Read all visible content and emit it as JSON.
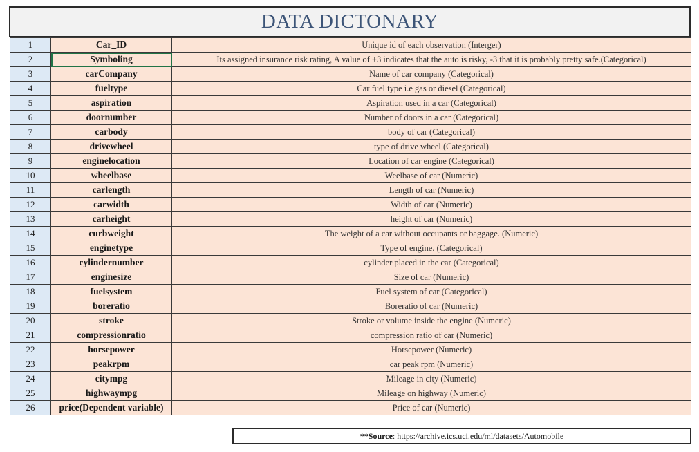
{
  "title": "DATA DICTONARY",
  "rows": [
    {
      "num": "1",
      "variable": "Car_ID",
      "description": "Unique id of each observation (Interger)"
    },
    {
      "num": "2",
      "variable": "Symboling",
      "description": "Its assigned insurance risk rating, A value of +3 indicates that the auto is risky, -3 that it is probably pretty safe.(Categorical)"
    },
    {
      "num": "3",
      "variable": "carCompany",
      "description": "Name of car company (Categorical)"
    },
    {
      "num": "4",
      "variable": "fueltype",
      "description": "Car fuel type i.e gas or diesel (Categorical)"
    },
    {
      "num": "5",
      "variable": "aspiration",
      "description": "Aspiration used in a car (Categorical)"
    },
    {
      "num": "6",
      "variable": "doornumber",
      "description": "Number of doors in a car (Categorical)"
    },
    {
      "num": "7",
      "variable": "carbody",
      "description": "body of car (Categorical)"
    },
    {
      "num": "8",
      "variable": "drivewheel",
      "description": "type of drive wheel (Categorical)"
    },
    {
      "num": "9",
      "variable": "enginelocation",
      "description": "Location of car engine (Categorical)"
    },
    {
      "num": "10",
      "variable": "wheelbase",
      "description": "Weelbase of car (Numeric)"
    },
    {
      "num": "11",
      "variable": "carlength",
      "description": "Length of car (Numeric)"
    },
    {
      "num": "12",
      "variable": "carwidth",
      "description": "Width of car (Numeric)"
    },
    {
      "num": "13",
      "variable": "carheight",
      "description": "height of car (Numeric)"
    },
    {
      "num": "14",
      "variable": "curbweight",
      "description": "The weight of a car without occupants or baggage. (Numeric)"
    },
    {
      "num": "15",
      "variable": "enginetype",
      "description": "Type of engine. (Categorical)"
    },
    {
      "num": "16",
      "variable": "cylindernumber",
      "description": "cylinder placed in the car (Categorical)"
    },
    {
      "num": "17",
      "variable": "enginesize",
      "description": "Size of car (Numeric)"
    },
    {
      "num": "18",
      "variable": "fuelsystem",
      "description": "Fuel system of car (Categorical)"
    },
    {
      "num": "19",
      "variable": "boreratio",
      "description": "Boreratio of car (Numeric)"
    },
    {
      "num": "20",
      "variable": "stroke",
      "description": "Stroke or volume inside the engine (Numeric)"
    },
    {
      "num": "21",
      "variable": "compressionratio",
      "description": "compression ratio of car (Numeric)"
    },
    {
      "num": "22",
      "variable": "horsepower",
      "description": "Horsepower (Numeric)"
    },
    {
      "num": "23",
      "variable": "peakrpm",
      "description": "car peak rpm (Numeric)"
    },
    {
      "num": "24",
      "variable": "citympg",
      "description": "Mileage in city (Numeric)"
    },
    {
      "num": "25",
      "variable": "highwaympg",
      "description": "Mileage on highway (Numeric)"
    },
    {
      "num": "26",
      "variable": "price(Dependent variable)",
      "description": "Price of car (Numeric)"
    }
  ],
  "selected_row": 1,
  "source": {
    "label": "**Source",
    "separator": ": ",
    "url": "https://archive.ics.uci.edu/ml/datasets/Automobile"
  },
  "colors": {
    "title_text": "#3d5578",
    "number_column_bg": "#dde9f5",
    "content_bg": "#fce4d6",
    "selection_border": "#217346"
  }
}
